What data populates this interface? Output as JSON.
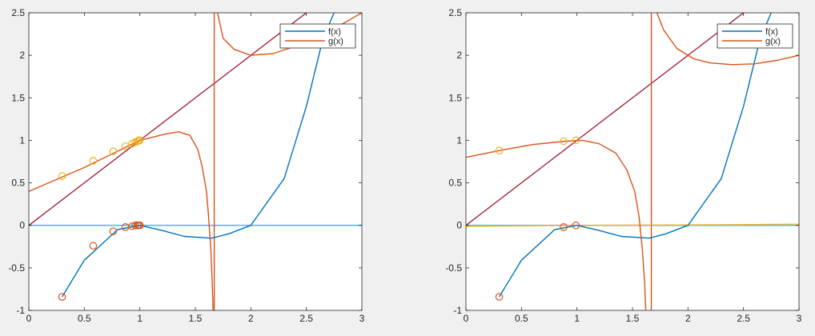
{
  "chart_data": [
    {
      "type": "line",
      "xlim": [
        0,
        3
      ],
      "ylim": [
        -1,
        2.5
      ],
      "x_ticks": [
        "0",
        "0.5",
        "1",
        "1.5",
        "2",
        "2.5",
        "3"
      ],
      "y_ticks": [
        "-1",
        "-0.5",
        "0",
        "0.5",
        "1",
        "1.5",
        "2",
        "2.5"
      ],
      "legend_position": "top-right",
      "legend": [
        "f(x)",
        "g(x)"
      ],
      "colors": {
        "f": "#0072bd",
        "g": "#d95319",
        "diagonal": "#a2142f",
        "horizontal": "#4dbeee",
        "iter_g": "#edb120",
        "iter_f": "#d95319"
      },
      "series": [
        {
          "name": "f(x)",
          "points": [
            [
              0.3,
              -0.84
            ],
            [
              0.5,
              -0.41
            ],
            [
              0.8,
              -0.05
            ],
            [
              1.0,
              0.0
            ],
            [
              1.2,
              -0.06
            ],
            [
              1.4,
              -0.13
            ],
            [
              1.65,
              -0.15
            ],
            [
              1.8,
              -0.1
            ],
            [
              2.0,
              0.0
            ],
            [
              2.3,
              0.55
            ],
            [
              2.5,
              1.4
            ],
            [
              2.65,
              2.2
            ],
            [
              2.75,
              2.5
            ]
          ]
        },
        {
          "name": "g(x)",
          "points": [
            [
              0.0,
              0.4
            ],
            [
              0.5,
              0.68
            ],
            [
              1.0,
              1.0
            ],
            [
              1.25,
              1.08
            ],
            [
              1.35,
              1.1
            ],
            [
              1.45,
              1.06
            ],
            [
              1.52,
              0.9
            ],
            [
              1.56,
              0.7
            ],
            [
              1.6,
              0.4
            ],
            [
              1.62,
              0.1
            ],
            [
              1.64,
              -0.3
            ],
            [
              1.65,
              -0.6
            ],
            [
              1.66,
              -1.0
            ]
          ],
          "branch2": [
            [
              1.7,
              2.5
            ],
            [
              1.75,
              2.2
            ],
            [
              1.85,
              2.07
            ],
            [
              2.0,
              2.0
            ],
            [
              2.2,
              2.02
            ],
            [
              2.5,
              2.15
            ],
            [
              2.8,
              2.35
            ],
            [
              3.0,
              2.5
            ]
          ]
        },
        {
          "name": "",
          "points": [
            [
              0,
              0
            ],
            [
              2.5,
              2.5
            ]
          ]
        },
        {
          "name": "",
          "points": [
            [
              0,
              0
            ],
            [
              3,
              0
            ]
          ]
        }
      ],
      "vertical_line_x": 1.67,
      "iterates_on_g": [
        [
          0.3,
          0.58
        ],
        [
          0.58,
          0.76
        ],
        [
          0.76,
          0.87
        ],
        [
          0.87,
          0.93
        ],
        [
          0.93,
          0.96
        ],
        [
          0.96,
          0.98
        ],
        [
          0.98,
          0.99
        ],
        [
          0.99,
          1.0
        ],
        [
          1.0,
          1.0
        ]
      ],
      "iterates_on_f": [
        [
          0.3,
          -0.84
        ],
        [
          0.58,
          -0.24
        ],
        [
          0.76,
          -0.07
        ],
        [
          0.87,
          -0.02
        ],
        [
          0.93,
          -0.01
        ],
        [
          0.96,
          0.0
        ],
        [
          0.98,
          0.0
        ],
        [
          0.99,
          0.0
        ],
        [
          1.0,
          0.0
        ]
      ]
    },
    {
      "type": "line",
      "xlim": [
        0,
        3
      ],
      "ylim": [
        -1,
        2.5
      ],
      "x_ticks": [
        "0",
        "0.5",
        "1",
        "1.5",
        "2",
        "2.5",
        "3"
      ],
      "y_ticks": [
        "-1",
        "-0.5",
        "0",
        "0.5",
        "1",
        "1.5",
        "2",
        "2.5"
      ],
      "legend_position": "top-right",
      "legend": [
        "f(x)",
        "g(x)"
      ],
      "colors": {
        "f": "#0072bd",
        "g": "#d95319",
        "diagonal": "#a2142f",
        "horizontal": "#4dbeee",
        "iter_g": "#edb120",
        "iter_f": "#d95319",
        "near_zero": "#edb120"
      },
      "series": [
        {
          "name": "f(x)",
          "points": [
            [
              0.3,
              -0.84
            ],
            [
              0.5,
              -0.41
            ],
            [
              0.8,
              -0.05
            ],
            [
              1.0,
              0.0
            ],
            [
              1.2,
              -0.06
            ],
            [
              1.4,
              -0.13
            ],
            [
              1.65,
              -0.15
            ],
            [
              1.8,
              -0.1
            ],
            [
              2.0,
              0.0
            ],
            [
              2.3,
              0.55
            ],
            [
              2.5,
              1.4
            ],
            [
              2.65,
              2.2
            ],
            [
              2.75,
              2.5
            ]
          ]
        },
        {
          "name": "g(x)",
          "points": [
            [
              0.0,
              0.8
            ],
            [
              0.3,
              0.88
            ],
            [
              0.6,
              0.95
            ],
            [
              0.9,
              0.99
            ],
            [
              1.05,
              1.0
            ],
            [
              1.2,
              0.96
            ],
            [
              1.35,
              0.85
            ],
            [
              1.45,
              0.65
            ],
            [
              1.52,
              0.4
            ],
            [
              1.56,
              0.1
            ],
            [
              1.59,
              -0.3
            ],
            [
              1.61,
              -0.7
            ],
            [
              1.62,
              -1.0
            ]
          ],
          "branch2": [
            [
              1.72,
              2.5
            ],
            [
              1.78,
              2.3
            ],
            [
              1.9,
              2.08
            ],
            [
              2.05,
              1.96
            ],
            [
              2.2,
              1.91
            ],
            [
              2.4,
              1.89
            ],
            [
              2.6,
              1.9
            ],
            [
              2.8,
              1.94
            ],
            [
              3.0,
              2.0
            ]
          ]
        },
        {
          "name": "",
          "points": [
            [
              0,
              0
            ],
            [
              2.5,
              2.5
            ]
          ]
        },
        {
          "name": "",
          "points": [
            [
              0,
              0
            ],
            [
              3,
              0
            ]
          ]
        },
        {
          "name": "",
          "points": [
            [
              0,
              -0.01
            ],
            [
              1.0,
              0.0
            ],
            [
              2.0,
              0.005
            ],
            [
              3.0,
              0.015
            ]
          ]
        }
      ],
      "vertical_line_x": 1.67,
      "iterates_on_g": [
        [
          0.3,
          0.88
        ],
        [
          0.88,
          0.99
        ],
        [
          0.99,
          1.0
        ]
      ],
      "iterates_on_f": [
        [
          0.3,
          -0.84
        ],
        [
          0.88,
          -0.02
        ],
        [
          0.99,
          0.0
        ]
      ]
    }
  ]
}
